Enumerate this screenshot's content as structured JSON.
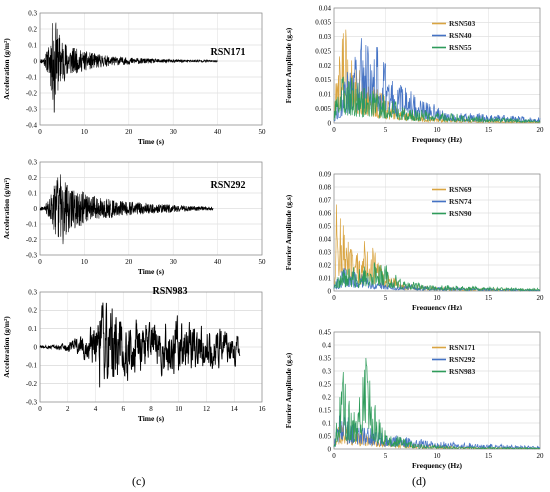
{
  "captions": {
    "left": "(c)",
    "right": "(d)"
  },
  "chart_data": [
    {
      "type": "line",
      "record": "RSN171",
      "xlabel": "Time (s)",
      "ylabel": "Acceleration (g/m²)",
      "xlim": [
        0,
        50
      ],
      "xticks": [
        0,
        10,
        20,
        30,
        40,
        50
      ],
      "ylim": [
        -0.4,
        0.3
      ],
      "yticks": [
        -0.4,
        -0.3,
        -0.2,
        -0.1,
        0,
        0.1,
        0.2,
        0.3
      ],
      "grid": true,
      "duration": 40,
      "envelope": [
        [
          0,
          0.01
        ],
        [
          1,
          0.03
        ],
        [
          2,
          0.1
        ],
        [
          3,
          0.28
        ],
        [
          4,
          0.2
        ],
        [
          5,
          0.14
        ],
        [
          7,
          0.09
        ],
        [
          9,
          0.07
        ],
        [
          12,
          0.05
        ],
        [
          16,
          0.03
        ],
        [
          22,
          0.018
        ],
        [
          30,
          0.01
        ],
        [
          40,
          0.006
        ]
      ],
      "peaks": [
        {
          "x": 3.6,
          "y": 0.24
        },
        {
          "x": 3.2,
          "y": -0.32
        }
      ],
      "color": "#000000"
    },
    {
      "type": "line",
      "record": "RSN292",
      "xlabel": "Time (s)",
      "ylabel": "Acceleration (g/m²)",
      "xlim": [
        0,
        50
      ],
      "xticks": [
        0,
        10,
        20,
        30,
        40,
        50
      ],
      "ylim": [
        -0.3,
        0.3
      ],
      "yticks": [
        -0.3,
        -0.2,
        -0.1,
        0,
        0.1,
        0.2,
        0.3
      ],
      "grid": true,
      "duration": 39,
      "envelope": [
        [
          0,
          0.01
        ],
        [
          1,
          0.02
        ],
        [
          2,
          0.06
        ],
        [
          3,
          0.15
        ],
        [
          4,
          0.2
        ],
        [
          5,
          0.2
        ],
        [
          7,
          0.14
        ],
        [
          9,
          0.12
        ],
        [
          11,
          0.09
        ],
        [
          14,
          0.07
        ],
        [
          18,
          0.05
        ],
        [
          22,
          0.04
        ],
        [
          27,
          0.03
        ],
        [
          32,
          0.02
        ],
        [
          39,
          0.01
        ]
      ],
      "peaks": [
        {
          "x": 4.6,
          "y": 0.22
        },
        {
          "x": 5.2,
          "y": -0.23
        }
      ],
      "color": "#000000"
    },
    {
      "type": "line",
      "record": "RSN983",
      "xlabel": "Time (s)",
      "ylabel": "Acceleration (g/m²)",
      "xlim": [
        0,
        16
      ],
      "xticks": [
        0,
        2,
        4,
        6,
        8,
        10,
        12,
        14,
        16
      ],
      "ylim": [
        -0.3,
        0.3
      ],
      "yticks": [
        -0.3,
        -0.2,
        -0.1,
        0,
        0.1,
        0.2,
        0.3
      ],
      "grid": true,
      "duration": 14.4,
      "envelope": [
        [
          0,
          0.005
        ],
        [
          1,
          0.01
        ],
        [
          2,
          0.03
        ],
        [
          3,
          0.06
        ],
        [
          4,
          0.12
        ],
        [
          4.5,
          0.2
        ],
        [
          5.5,
          0.2
        ],
        [
          6.5,
          0.14
        ],
        [
          8,
          0.12
        ],
        [
          9.5,
          0.14
        ],
        [
          11,
          0.13
        ],
        [
          12.5,
          0.1
        ],
        [
          14.4,
          0.08
        ]
      ],
      "peaks": [
        {
          "x": 5.2,
          "y": 0.21
        },
        {
          "x": 4.3,
          "y": -0.22
        }
      ],
      "color": "#000000"
    },
    {
      "type": "line",
      "xlabel": "Frequency (Hz)",
      "ylabel": "Fourier Amplitude (g.s)",
      "xlim": [
        0,
        20
      ],
      "xticks": [
        0,
        5,
        10,
        15,
        20
      ],
      "ylim": [
        0,
        0.04
      ],
      "yticks": [
        0,
        0.005,
        0.01,
        0.015,
        0.02,
        0.025,
        0.03,
        0.035,
        0.04
      ],
      "ytick_labels": [
        "0",
        "0.005",
        "0.01",
        "0.015",
        "0.02",
        "0.025",
        "0.03",
        "0.035",
        "0.04"
      ],
      "grid": true,
      "legend_position": "top-right",
      "series": [
        {
          "name": "RSN503",
          "color": "#d9a441",
          "envelope": [
            [
              0,
              0.004
            ],
            [
              0.5,
              0.03
            ],
            [
              0.8,
              0.037
            ],
            [
              1.5,
              0.028
            ],
            [
              2.5,
              0.02
            ],
            [
              3.5,
              0.015
            ],
            [
              5,
              0.009
            ],
            [
              7,
              0.004
            ],
            [
              10,
              0.002
            ],
            [
              15,
              0.001
            ],
            [
              20,
              0.0005
            ]
          ]
        },
        {
          "name": "RSN40",
          "color": "#4472c4",
          "envelope": [
            [
              0,
              0.003
            ],
            [
              0.5,
              0.012
            ],
            [
              1.5,
              0.02
            ],
            [
              2.5,
              0.03
            ],
            [
              3.2,
              0.035
            ],
            [
              4.5,
              0.025
            ],
            [
              6,
              0.015
            ],
            [
              8,
              0.01
            ],
            [
              10,
              0.006
            ],
            [
              12,
              0.004
            ],
            [
              15,
              0.003
            ],
            [
              20,
              0.002
            ]
          ]
        },
        {
          "name": "RSN55",
          "color": "#2e9b5a",
          "envelope": [
            [
              0,
              0.003
            ],
            [
              0.5,
              0.02
            ],
            [
              1.5,
              0.017
            ],
            [
              3,
              0.012
            ],
            [
              5,
              0.01
            ],
            [
              7,
              0.006
            ],
            [
              10,
              0.004
            ],
            [
              15,
              0.002
            ],
            [
              20,
              0.001
            ]
          ]
        }
      ]
    },
    {
      "type": "line",
      "xlabel": "Frequency (Hz)",
      "ylabel": "Fourier Amplitude (g.s)",
      "xlim": [
        0,
        20
      ],
      "xticks": [
        0,
        5,
        10,
        15,
        20
      ],
      "ylim": [
        0,
        0.09
      ],
      "yticks": [
        0,
        0.01,
        0.02,
        0.03,
        0.04,
        0.05,
        0.06,
        0.07,
        0.08,
        0.09
      ],
      "ytick_labels": [
        "0",
        "0.01",
        "0.02",
        "0.03",
        "0.04",
        "0.05",
        "0.06",
        "0.07",
        "0.08",
        "0.09"
      ],
      "grid": true,
      "legend_position": "top-right",
      "series": [
        {
          "name": "RSN69",
          "color": "#d9a441",
          "envelope": [
            [
              0,
              0.01
            ],
            [
              0.3,
              0.085
            ],
            [
              0.8,
              0.06
            ],
            [
              1.5,
              0.035
            ],
            [
              2.5,
              0.03
            ],
            [
              3.2,
              0.045
            ],
            [
              4,
              0.03
            ],
            [
              5,
              0.015
            ],
            [
              7,
              0.006
            ],
            [
              10,
              0.003
            ],
            [
              15,
              0.002
            ],
            [
              20,
              0.001
            ]
          ]
        },
        {
          "name": "RSN74",
          "color": "#4472c4",
          "envelope": [
            [
              0,
              0.005
            ],
            [
              1,
              0.02
            ],
            [
              2,
              0.015
            ],
            [
              4,
              0.01
            ],
            [
              6,
              0.006
            ],
            [
              10,
              0.003
            ],
            [
              15,
              0.002
            ],
            [
              20,
              0.001
            ]
          ]
        },
        {
          "name": "RSN90",
          "color": "#2e9b5a",
          "envelope": [
            [
              0,
              0.005
            ],
            [
              1,
              0.02
            ],
            [
              2.5,
              0.018
            ],
            [
              4.5,
              0.028
            ],
            [
              5.5,
              0.015
            ],
            [
              7,
              0.008
            ],
            [
              10,
              0.005
            ],
            [
              15,
              0.003
            ],
            [
              20,
              0.002
            ]
          ]
        }
      ]
    },
    {
      "type": "line",
      "xlabel": "Frequency (Hz)",
      "ylabel": "Fourier Amplitude (g.s)",
      "xlim": [
        0,
        20
      ],
      "xticks": [
        0,
        5,
        10,
        15,
        20
      ],
      "ylim": [
        0,
        0.45
      ],
      "yticks": [
        0,
        0.05,
        0.1,
        0.15,
        0.2,
        0.25,
        0.3,
        0.35,
        0.4,
        0.45
      ],
      "ytick_labels": [
        "0",
        "0.05",
        "0.1",
        "0.15",
        "0.2",
        "0.25",
        "0.3",
        "0.35",
        "0.4",
        "0.45"
      ],
      "grid": true,
      "legend_position": "top-right",
      "series": [
        {
          "name": "RSN171",
          "color": "#d9a441",
          "envelope": [
            [
              0,
              0.02
            ],
            [
              0.5,
              0.12
            ],
            [
              1.5,
              0.1
            ],
            [
              3,
              0.07
            ],
            [
              5,
              0.04
            ],
            [
              8,
              0.02
            ],
            [
              12,
              0.01
            ],
            [
              20,
              0.005
            ]
          ]
        },
        {
          "name": "RSN292",
          "color": "#4472c4",
          "envelope": [
            [
              0,
              0.02
            ],
            [
              0.5,
              0.15
            ],
            [
              1.5,
              0.12
            ],
            [
              3,
              0.09
            ],
            [
              5,
              0.06
            ],
            [
              7,
              0.05
            ],
            [
              10,
              0.03
            ],
            [
              15,
              0.02
            ],
            [
              20,
              0.01
            ]
          ]
        },
        {
          "name": "RSN983",
          "color": "#2e9b5a",
          "envelope": [
            [
              0,
              0.02
            ],
            [
              0.8,
              0.37
            ],
            [
              1.2,
              0.22
            ],
            [
              2,
              0.15
            ],
            [
              3.2,
              0.4
            ],
            [
              3.8,
              0.2
            ],
            [
              5,
              0.07
            ],
            [
              8,
              0.02
            ],
            [
              12,
              0.01
            ],
            [
              20,
              0.005
            ]
          ]
        }
      ]
    }
  ]
}
